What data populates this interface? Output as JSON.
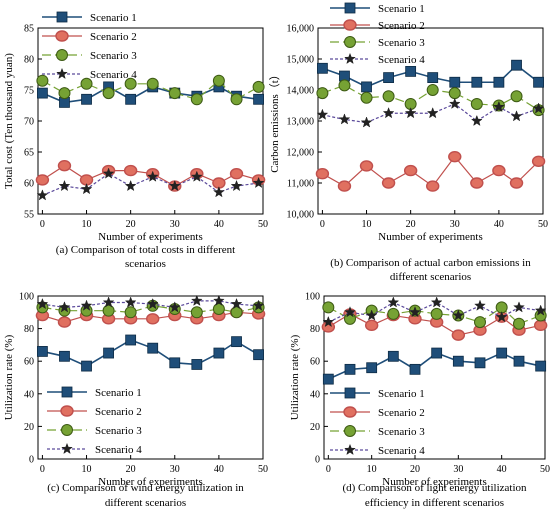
{
  "colors": {
    "Scenario 1": "#1f4e79",
    "Scenario 2": "#c0504d",
    "Scenario 3": "#76a234",
    "Scenario 4": "#5b4a9b"
  },
  "chart_data": [
    {
      "type": "line",
      "caption": [
        "(a) Comparison of total costs in different",
        "scenarios"
      ],
      "xlabel": "Number of experiments",
      "ylabel": "Total cost (Ten thousand yuan)",
      "xlim": [
        -1,
        50
      ],
      "ylim": [
        55,
        85
      ],
      "xticks": [
        0,
        10,
        20,
        30,
        40,
        50
      ],
      "yticks": [
        55,
        60,
        65,
        70,
        75,
        80,
        85
      ],
      "legend": "top-center",
      "series": [
        {
          "name": "Scenario 1",
          "x": [
            0,
            5,
            10,
            15,
            20,
            25,
            30,
            35,
            40,
            44,
            49
          ],
          "y": [
            74.5,
            73,
            73.5,
            75.5,
            73.5,
            75.5,
            74.5,
            74,
            75.5,
            74,
            73.5
          ]
        },
        {
          "name": "Scenario 2",
          "x": [
            0,
            5,
            10,
            15,
            20,
            25,
            30,
            35,
            40,
            44,
            49
          ],
          "y": [
            60.5,
            62.8,
            60.5,
            62,
            62,
            61.5,
            59.5,
            61.5,
            60,
            61.5,
            60.5
          ]
        },
        {
          "name": "Scenario 3",
          "x": [
            0,
            5,
            10,
            15,
            20,
            25,
            30,
            35,
            40,
            44,
            49
          ],
          "y": [
            76.5,
            74.5,
            76,
            74.5,
            76,
            76,
            74.5,
            73.5,
            76.5,
            73.5,
            75.5
          ]
        },
        {
          "name": "Scenario 4",
          "x": [
            0,
            5,
            10,
            15,
            20,
            25,
            30,
            35,
            40,
            44,
            49
          ],
          "y": [
            58,
            59.5,
            59,
            61.5,
            59.5,
            61,
            59.5,
            61,
            58.5,
            59.5,
            60
          ]
        }
      ]
    },
    {
      "type": "line",
      "caption": [
        "(b) Comparison of actual carbon emissions in",
        "different scenarios"
      ],
      "xlabel": "Number of experiments",
      "ylabel": "Carbon emissions（t）",
      "xlim": [
        -1,
        50
      ],
      "ylim": [
        10000,
        16000
      ],
      "xticks": [
        0,
        10,
        20,
        30,
        40,
        50
      ],
      "yticks": [
        10000,
        11000,
        12000,
        13000,
        14000,
        15000,
        16000
      ],
      "ytick_labels": [
        "10,000",
        "11,000",
        "12,000",
        "13,000",
        "14,000",
        "15,000",
        "16,000"
      ],
      "legend": "top-center",
      "series": [
        {
          "name": "Scenario 1",
          "x": [
            0,
            5,
            10,
            15,
            20,
            25,
            30,
            35,
            40,
            44,
            49
          ],
          "y": [
            14700,
            14450,
            14100,
            14400,
            14600,
            14400,
            14250,
            14250,
            14250,
            14800,
            14250
          ]
        },
        {
          "name": "Scenario 2",
          "x": [
            0,
            5,
            10,
            15,
            20,
            25,
            30,
            35,
            40,
            44,
            49
          ],
          "y": [
            11300,
            10900,
            11550,
            11000,
            11400,
            10900,
            11850,
            11000,
            11400,
            11000,
            11700
          ]
        },
        {
          "name": "Scenario 3",
          "x": [
            0,
            5,
            10,
            15,
            20,
            25,
            30,
            35,
            40,
            44,
            49
          ],
          "y": [
            13900,
            14150,
            13750,
            13800,
            13550,
            14000,
            13900,
            13550,
            13500,
            13800,
            13350
          ]
        },
        {
          "name": "Scenario 4",
          "x": [
            0,
            5,
            10,
            15,
            20,
            25,
            30,
            35,
            40,
            44,
            49
          ],
          "y": [
            13200,
            13050,
            12950,
            13250,
            13250,
            13250,
            13550,
            13000,
            13450,
            13150,
            13400
          ]
        }
      ]
    },
    {
      "type": "line",
      "caption": [
        "(c) Comparison of wind energy utilization in",
        "different scenarios"
      ],
      "xlabel": "Number of experiments",
      "ylabel": "Utilization rate (%)",
      "xlim": [
        -1,
        50
      ],
      "ylim": [
        0,
        100
      ],
      "xticks": [
        0,
        10,
        20,
        30,
        40,
        50
      ],
      "yticks": [
        0,
        20,
        40,
        60,
        80,
        100
      ],
      "legend": "bottom-center",
      "series": [
        {
          "name": "Scenario 1",
          "x": [
            0,
            5,
            10,
            15,
            20,
            25,
            30,
            35,
            40,
            44,
            49
          ],
          "y": [
            66,
            63,
            57,
            65,
            73,
            68,
            59,
            58,
            65,
            72,
            64
          ]
        },
        {
          "name": "Scenario 2",
          "x": [
            0,
            5,
            10,
            15,
            20,
            25,
            30,
            35,
            40,
            44,
            49
          ],
          "y": [
            88,
            84,
            88,
            86,
            86,
            86,
            88,
            86,
            88,
            90,
            89
          ]
        },
        {
          "name": "Scenario 3",
          "x": [
            0,
            5,
            10,
            15,
            20,
            25,
            30,
            35,
            40,
            44,
            49
          ],
          "y": [
            93,
            91,
            91,
            91,
            90,
            94,
            92,
            90,
            92,
            90,
            93
          ]
        },
        {
          "name": "Scenario 4",
          "x": [
            0,
            5,
            10,
            15,
            20,
            25,
            30,
            35,
            40,
            44,
            49
          ],
          "y": [
            95,
            93,
            94,
            96,
            96,
            95,
            93,
            97,
            97,
            95,
            94
          ]
        }
      ]
    },
    {
      "type": "line",
      "caption": [
        "(d) Comparison of light energy utilization",
        "efficiency in different scenarios"
      ],
      "xlabel": "Number of experiments",
      "ylabel": "Utilization rate (%)",
      "xlim": [
        -1,
        50
      ],
      "ylim": [
        0,
        100
      ],
      "xticks": [
        0,
        10,
        20,
        30,
        40,
        50
      ],
      "yticks": [
        0,
        20,
        40,
        60,
        80,
        100
      ],
      "legend": "bottom-center",
      "series": [
        {
          "name": "Scenario 1",
          "x": [
            0,
            5,
            10,
            15,
            20,
            25,
            30,
            35,
            40,
            44,
            49
          ],
          "y": [
            49,
            55,
            56,
            63,
            55,
            65,
            60,
            59,
            65,
            60,
            57
          ]
        },
        {
          "name": "Scenario 2",
          "x": [
            0,
            5,
            10,
            15,
            20,
            25,
            30,
            35,
            40,
            44,
            49
          ],
          "y": [
            81,
            89,
            82,
            88,
            86,
            84,
            76,
            79,
            87,
            79,
            82
          ]
        },
        {
          "name": "Scenario 3",
          "x": [
            0,
            5,
            10,
            15,
            20,
            25,
            30,
            35,
            40,
            44,
            49
          ],
          "y": [
            93,
            86,
            91,
            89,
            91,
            89,
            88,
            84,
            93,
            83,
            88
          ]
        },
        {
          "name": "Scenario 4",
          "x": [
            0,
            5,
            10,
            15,
            20,
            25,
            30,
            35,
            40,
            44,
            49
          ],
          "y": [
            84,
            90,
            88,
            96,
            90,
            96,
            88,
            94,
            87,
            93,
            91
          ]
        }
      ]
    }
  ]
}
